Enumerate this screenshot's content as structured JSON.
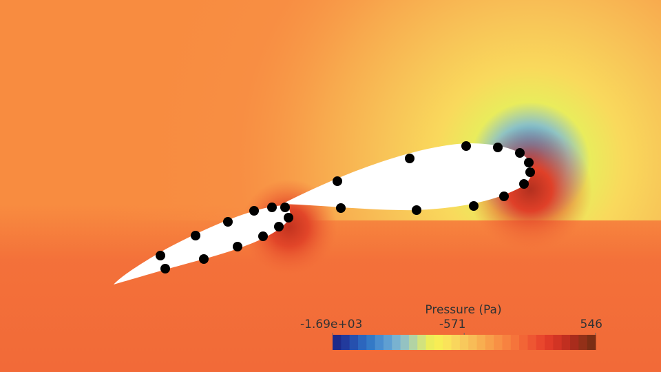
{
  "colorbar": {
    "title": "Pressure (Pa)",
    "range": [
      -1690,
      546
    ],
    "ticks": [
      {
        "value": -1690,
        "label": "-1.69e+03"
      },
      -571,
      546
    ],
    "colors": [
      "#1e2a8a",
      "#223a9c",
      "#2650ae",
      "#2c66bd",
      "#3479c6",
      "#4a8dcf",
      "#5f9fd2",
      "#79b2d0",
      "#94c2c2",
      "#b2d3a4",
      "#d2e27d",
      "#ecec5a",
      "#f7ed55",
      "#fae35a",
      "#f9d65d",
      "#f8c95c",
      "#f8bc57",
      "#f8ae50",
      "#f89f4a",
      "#f89045",
      "#f78240",
      "#f5743b",
      "#f26536",
      "#ee5632",
      "#e9472d",
      "#e03b28",
      "#d23424",
      "#c12f20",
      "#a92c1c",
      "#933018",
      "#7c2e14"
    ]
  }
}
